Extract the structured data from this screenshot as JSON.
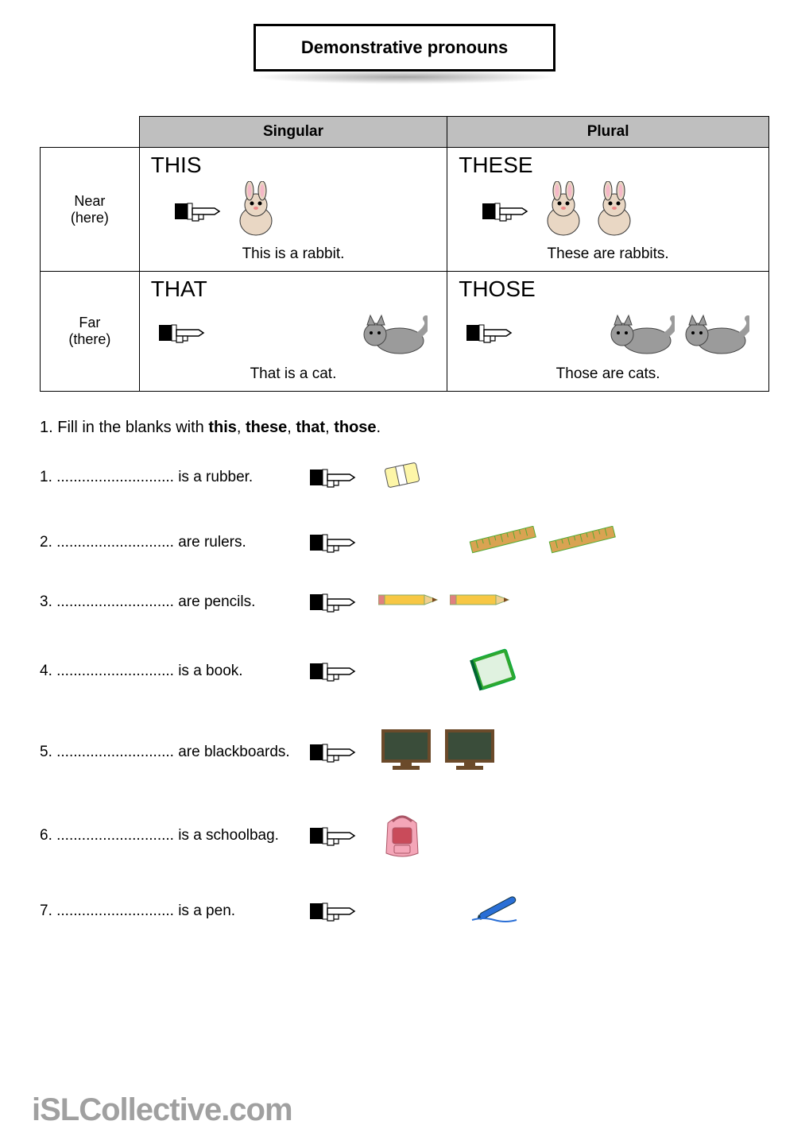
{
  "title": "Demonstrative pronouns",
  "table": {
    "col_headers": {
      "singular": "Singular",
      "plural": "Plural"
    },
    "row_headers": {
      "near": {
        "line1": "Near",
        "line2": "(here)"
      },
      "far": {
        "line1": "Far",
        "line2": "(there)"
      }
    },
    "cells": {
      "near_singular": {
        "pronoun": "THIS",
        "caption": "This is a rabbit.",
        "icon": "rabbit",
        "count": 1,
        "distance": "near"
      },
      "near_plural": {
        "pronoun": "THESE",
        "caption": "These are rabbits.",
        "icon": "rabbit",
        "count": 2,
        "distance": "near"
      },
      "far_singular": {
        "pronoun": "THAT",
        "caption": "That is a cat.",
        "icon": "cat",
        "count": 1,
        "distance": "far"
      },
      "far_plural": {
        "pronoun": "THOSE",
        "caption": "Those are cats.",
        "icon": "cat",
        "count": 2,
        "distance": "far"
      }
    }
  },
  "instruction": {
    "number": "1.",
    "prefix": "Fill in the blanks with ",
    "words": [
      "this",
      "these",
      "that",
      "those"
    ],
    "sep": ", ",
    "suffix": "."
  },
  "blank": "............................",
  "exercises": [
    {
      "n": "1.",
      "after": "is a rubber.",
      "icon": "eraser",
      "count": 1,
      "distance": "near"
    },
    {
      "n": "2.",
      "after": "are rulers.",
      "icon": "ruler",
      "count": 2,
      "distance": "far"
    },
    {
      "n": "3.",
      "after": "are pencils.",
      "icon": "pencil",
      "count": 2,
      "distance": "near"
    },
    {
      "n": "4.",
      "after": "is a book.",
      "icon": "book",
      "count": 1,
      "distance": "far"
    },
    {
      "n": "5.",
      "after": "are blackboards.",
      "icon": "blackboard",
      "count": 2,
      "distance": "near"
    },
    {
      "n": "6.",
      "after": "is a schoolbag.",
      "icon": "schoolbag",
      "count": 1,
      "distance": "near"
    },
    {
      "n": "7.",
      "after": "is a pen.",
      "icon": "pen",
      "count": 1,
      "distance": "far"
    }
  ],
  "colors": {
    "rabbit_body": "#e9d7c4",
    "rabbit_ear": "#f5b8c8",
    "cat": "#9b9b9b",
    "eraser": "#fdf6a8",
    "eraser_band": "#ffffff",
    "ruler": "#d9a352",
    "pencil_body": "#f7c744",
    "pencil_tip": "#7a4b1f",
    "pencil_eraser": "#e08080",
    "book": "#2fa82f",
    "blackboard": "#3a4d3a",
    "blackboard_frame": "#6b4a2a",
    "schoolbag": "#f4a6b8",
    "schoolbag_flap": "#c94b5a",
    "pen": "#2a6fd6",
    "hand_outline": "#000000",
    "hand_fill": "#ffffff"
  },
  "watermark": "iSLCollective.com"
}
